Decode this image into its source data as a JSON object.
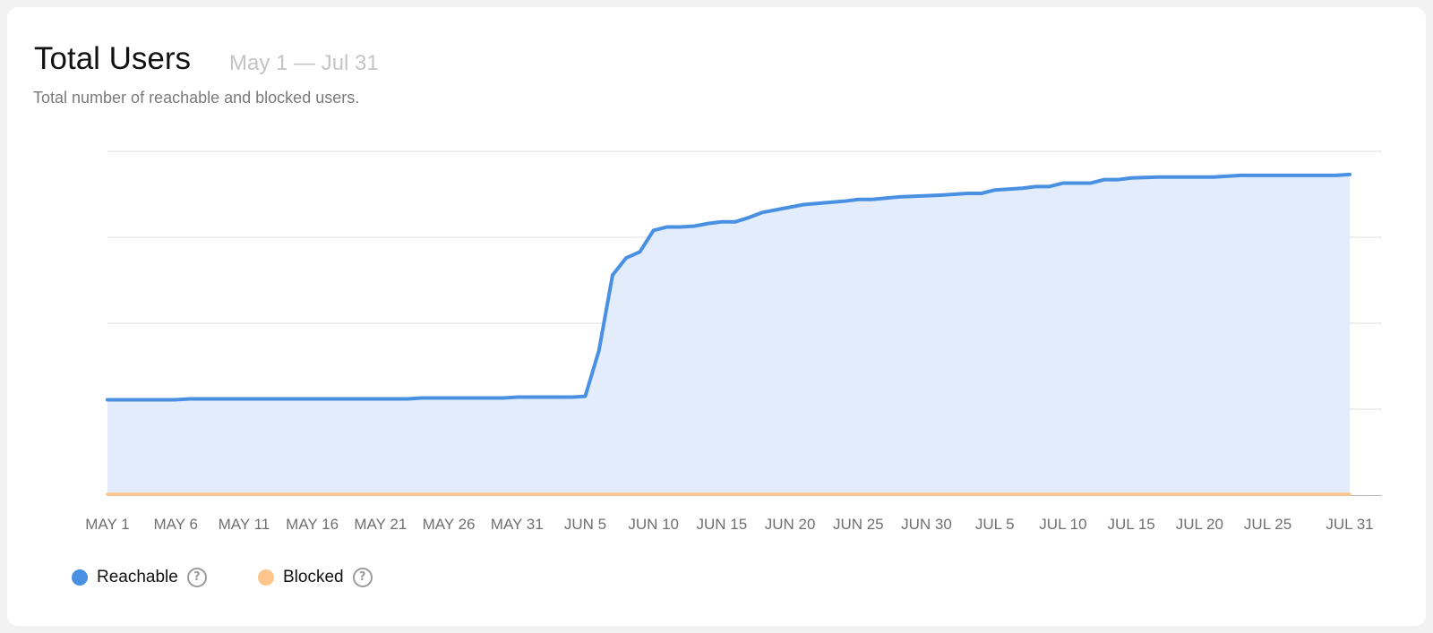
{
  "header": {
    "title": "Total Users",
    "date_range": "May 1 — Jul 31",
    "subtitle": "Total number of reachable and blocked users."
  },
  "legend": [
    {
      "label": "Reachable",
      "color": "#4a90e2",
      "icon": "help-icon"
    },
    {
      "label": "Blocked",
      "color": "#fec68c",
      "icon": "help-icon"
    }
  ],
  "chart_data": {
    "type": "area",
    "x_tick_labels": [
      "MAY 1",
      "MAY 6",
      "MAY 11",
      "MAY 16",
      "MAY 21",
      "MAY 26",
      "MAY 31",
      "JUN 5",
      "JUN 10",
      "JUN 15",
      "JUN 20",
      "JUN 25",
      "JUN 30",
      "JUL 5",
      "JUL 10",
      "JUL 15",
      "JUL 20",
      "JUL 25",
      "JUL 31"
    ],
    "x_start": "2018-05-01",
    "x_end": "2018-07-31",
    "ylim": [
      0,
      4
    ],
    "y_gridlines": [
      1,
      2,
      3,
      4
    ],
    "y_tick_labels_shown": false,
    "fill_color": "#e2ecfb",
    "series": [
      {
        "name": "Reachable",
        "color": "#4a90e2",
        "x": [
          "May 1",
          "May 6",
          "May 7",
          "May 10",
          "May 15",
          "May 20",
          "May 23",
          "May 24",
          "May 30",
          "May 31",
          "Jun 4",
          "Jun 5",
          "Jun 6",
          "Jun 7",
          "Jun 8",
          "Jun 9",
          "Jun 10",
          "Jun 11",
          "Jun 12",
          "Jun 13",
          "Jun 14",
          "Jun 15",
          "Jun 16",
          "Jun 17",
          "Jun 18",
          "Jun 20",
          "Jun 21",
          "Jun 24",
          "Jun 25",
          "Jun 26",
          "Jun 28",
          "Jul 1",
          "Jul 3",
          "Jul 4",
          "Jul 5",
          "Jul 7",
          "Jul 8",
          "Jul 9",
          "Jul 10",
          "Jul 12",
          "Jul 13",
          "Jul 14",
          "Jul 15",
          "Jul 17",
          "Jul 21",
          "Jul 23",
          "Jul 30",
          "Jul 31"
        ],
        "values": [
          1.11,
          1.11,
          1.12,
          1.12,
          1.12,
          1.12,
          1.12,
          1.13,
          1.13,
          1.14,
          1.14,
          1.15,
          1.68,
          2.56,
          2.76,
          2.83,
          3.08,
          3.12,
          3.12,
          3.13,
          3.16,
          3.18,
          3.18,
          3.23,
          3.29,
          3.35,
          3.38,
          3.42,
          3.44,
          3.44,
          3.47,
          3.49,
          3.51,
          3.51,
          3.55,
          3.57,
          3.59,
          3.59,
          3.63,
          3.63,
          3.67,
          3.67,
          3.69,
          3.7,
          3.7,
          3.72,
          3.72,
          3.73
        ]
      },
      {
        "name": "Blocked",
        "color": "#fec68c",
        "x": [
          "May 1",
          "Jul 31"
        ],
        "values": [
          0.01,
          0.01
        ]
      }
    ]
  }
}
